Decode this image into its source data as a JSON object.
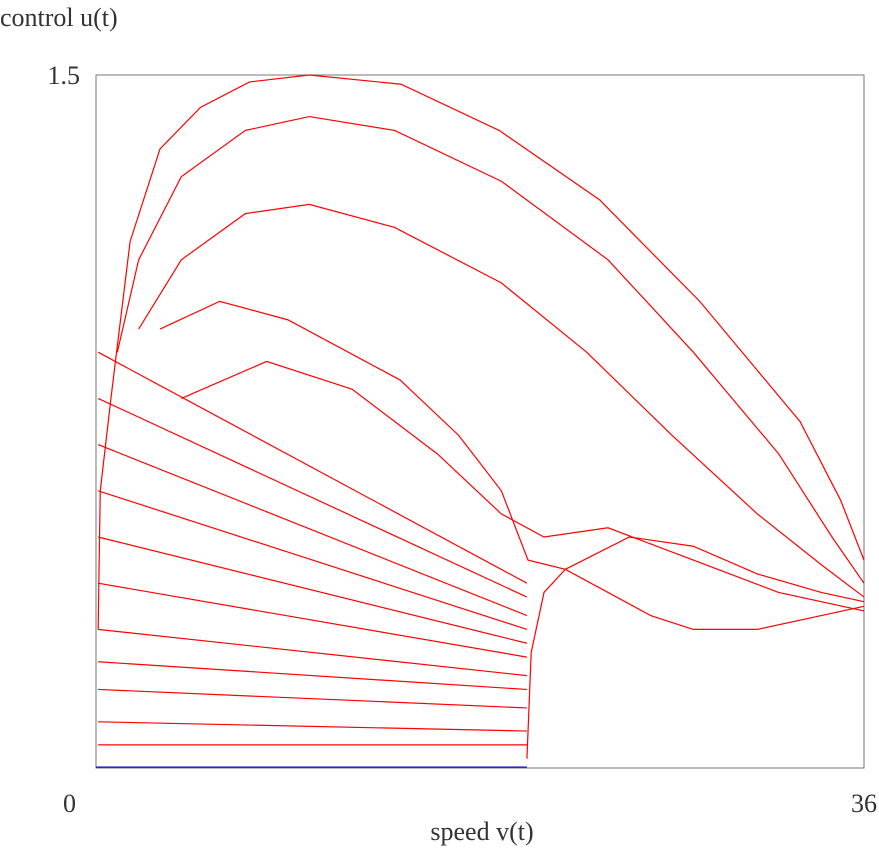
{
  "chart_data": {
    "type": "line",
    "ylabel": "control u(t)",
    "xlabel": "speed v(t)",
    "xlim": [
      0,
      36
    ],
    "ylim": [
      0,
      1.5
    ],
    "xticks": [
      0,
      36
    ],
    "yticks": [
      1.5
    ],
    "grid": false,
    "series": [
      {
        "color": "#0000cc",
        "x": [
          0,
          20.2
        ],
        "values": [
          0.002,
          0.002
        ]
      },
      {
        "color": "#ff0000",
        "x": [
          0.1,
          0.2,
          0.7,
          1.6,
          3,
          4.9,
          7.2,
          10,
          14.3,
          18.9,
          23.6,
          28.3,
          33,
          34.9,
          36
        ],
        "values": [
          0.3,
          0.6,
          0.8,
          1.14,
          1.34,
          1.43,
          1.485,
          1.5,
          1.48,
          1.38,
          1.23,
          1.01,
          0.75,
          0.58,
          0.45
        ]
      },
      {
        "color": "#ff0000",
        "x": [
          1,
          2,
          4,
          7,
          10,
          14,
          19,
          24,
          28,
          32,
          34.5,
          36
        ],
        "values": [
          0.9,
          1.1,
          1.28,
          1.38,
          1.41,
          1.38,
          1.27,
          1.1,
          0.9,
          0.68,
          0.5,
          0.4
        ]
      },
      {
        "color": "#ff0000",
        "x": [
          2,
          4,
          7,
          10,
          14,
          19,
          23,
          27,
          31,
          34,
          36
        ],
        "values": [
          0.95,
          1.1,
          1.2,
          1.22,
          1.17,
          1.05,
          0.9,
          0.72,
          0.55,
          0.44,
          0.37
        ]
      },
      {
        "color": "#ff0000",
        "x": [
          3,
          5.8,
          9,
          14.25,
          17,
          19,
          20.25,
          22,
          25,
          28,
          31,
          34,
          36
        ],
        "values": [
          0.95,
          1.01,
          0.97,
          0.84,
          0.72,
          0.6,
          0.45,
          0.43,
          0.5,
          0.48,
          0.42,
          0.38,
          0.36
        ]
      },
      {
        "color": "#ff0000",
        "x": [
          4,
          8,
          12,
          16,
          19,
          21,
          24,
          28,
          32,
          36
        ],
        "values": [
          0.8,
          0.88,
          0.82,
          0.68,
          0.55,
          0.5,
          0.52,
          0.45,
          0.38,
          0.34
        ]
      },
      {
        "color": "#ff0000",
        "x": [
          20.2,
          20.4,
          21,
          22,
          24,
          26,
          28,
          31,
          34,
          36
        ],
        "values": [
          0.02,
          0.25,
          0.38,
          0.43,
          0.38,
          0.33,
          0.3,
          0.3,
          0.33,
          0.35
        ]
      },
      {
        "color": "#ff0000",
        "x": [
          0.1,
          20.2
        ],
        "values": [
          0.05,
          0.05
        ]
      },
      {
        "color": "#ff0000",
        "x": [
          0.1,
          20.2
        ],
        "values": [
          0.1,
          0.08
        ]
      },
      {
        "color": "#ff0000",
        "x": [
          0.1,
          20.2
        ],
        "values": [
          0.17,
          0.13
        ]
      },
      {
        "color": "#ff0000",
        "x": [
          0.1,
          20.2
        ],
        "values": [
          0.23,
          0.17
        ]
      },
      {
        "color": "#ff0000",
        "x": [
          0.1,
          20.2
        ],
        "values": [
          0.3,
          0.2
        ]
      },
      {
        "color": "#ff0000",
        "x": [
          0.1,
          20.2
        ],
        "values": [
          0.4,
          0.24
        ]
      },
      {
        "color": "#ff0000",
        "x": [
          0.1,
          20.2
        ],
        "values": [
          0.5,
          0.27
        ]
      },
      {
        "color": "#ff0000",
        "x": [
          0.1,
          20.2
        ],
        "values": [
          0.6,
          0.3
        ]
      },
      {
        "color": "#ff0000",
        "x": [
          0.1,
          20.2
        ],
        "values": [
          0.7,
          0.33
        ]
      },
      {
        "color": "#ff0000",
        "x": [
          0.1,
          20.2
        ],
        "values": [
          0.8,
          0.37
        ]
      },
      {
        "color": "#ff0000",
        "x": [
          0.1,
          20.2
        ],
        "values": [
          0.9,
          0.4
        ]
      }
    ]
  }
}
